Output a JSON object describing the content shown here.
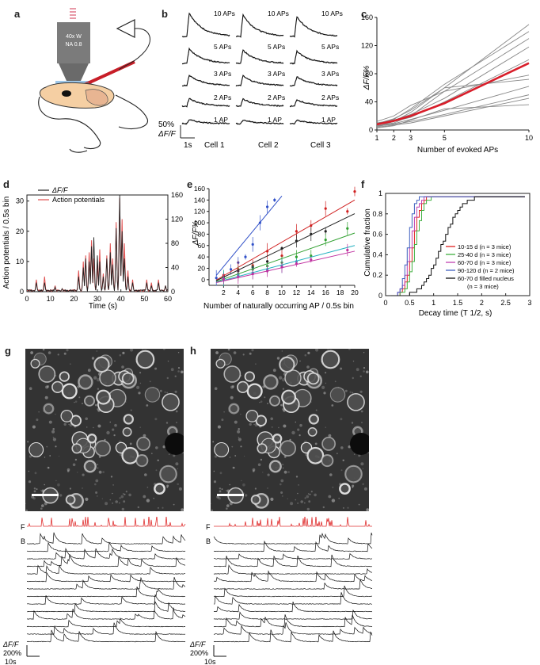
{
  "labels": {
    "a": "a",
    "b": "b",
    "c": "c",
    "d": "d",
    "e": "e",
    "f": "f",
    "g": "g",
    "h": "h"
  },
  "panel_a": {
    "objective_line1": "40x W",
    "objective_line2": "NA 0.8"
  },
  "panel_b": {
    "rows": [
      "10 APs",
      "5 APs",
      "3 APs",
      "2 APs",
      "1 AP"
    ],
    "cells": [
      "Cell 1",
      "Cell 2",
      "Cell 3"
    ],
    "scale_y": "50%",
    "scale_y_unit": "ΔF/F",
    "scale_x": "1s",
    "amplitudes": [
      1.0,
      0.55,
      0.38,
      0.25,
      0.12
    ]
  },
  "chart_data": [
    {
      "id": "c",
      "type": "line",
      "xlabel": "Number of evoked APs",
      "ylabel": "ΔF/F%",
      "xticks": [
        1,
        2,
        3,
        5,
        10
      ],
      "yticks": [
        0,
        40,
        80,
        120,
        160
      ],
      "xlim": [
        1,
        10
      ],
      "ylim": [
        0,
        160
      ],
      "mean": {
        "x": [
          1,
          2,
          3,
          5,
          10
        ],
        "y": [
          8,
          13,
          20,
          38,
          95
        ]
      },
      "cells": [
        {
          "x": [
            1,
            2,
            3,
            5,
            10
          ],
          "y": [
            5,
            12,
            25,
            60,
            150
          ]
        },
        {
          "x": [
            1,
            2,
            3,
            5,
            10
          ],
          "y": [
            8,
            15,
            30,
            65,
            140
          ]
        },
        {
          "x": [
            1,
            2,
            3,
            5,
            10
          ],
          "y": [
            6,
            10,
            20,
            55,
            130
          ]
        },
        {
          "x": [
            1,
            2,
            3,
            5,
            10
          ],
          "y": [
            10,
            14,
            22,
            45,
            118
          ]
        },
        {
          "x": [
            1,
            2,
            3,
            5,
            10
          ],
          "y": [
            7,
            12,
            18,
            40,
            100
          ]
        },
        {
          "x": [
            1,
            2,
            3,
            5,
            10
          ],
          "y": [
            9,
            16,
            28,
            60,
            72
          ]
        },
        {
          "x": [
            1,
            2,
            3,
            5,
            10
          ],
          "y": [
            5,
            9,
            15,
            28,
            62
          ]
        },
        {
          "x": [
            1,
            2,
            3,
            5,
            10
          ],
          "y": [
            6,
            8,
            12,
            22,
            50
          ]
        },
        {
          "x": [
            1,
            2,
            3,
            5,
            10
          ],
          "y": [
            4,
            7,
            10,
            20,
            45
          ]
        },
        {
          "x": [
            1,
            2,
            3,
            5,
            10
          ],
          "y": [
            12,
            20,
            35,
            55,
            78
          ]
        },
        {
          "x": [
            1,
            2,
            3,
            5,
            10
          ],
          "y": [
            3,
            6,
            14,
            30,
            36
          ]
        }
      ]
    },
    {
      "id": "d",
      "type": "line",
      "xlabel": "Time (s)",
      "ylabel_left": "Action potentials / 0.5s bin",
      "xticks": [
        0,
        10,
        20,
        30,
        40,
        50,
        60
      ],
      "yticks_left": [
        0,
        10,
        20,
        30
      ],
      "yticks_right": [
        0,
        40,
        80,
        120,
        160
      ],
      "xlim": [
        0,
        60
      ],
      "ylim_left": [
        0,
        32
      ],
      "ylim_right": [
        0,
        160
      ],
      "legend": [
        "ΔF/F",
        "Action potentials"
      ],
      "legend_position": "top-left",
      "peaks": [
        {
          "t": 4,
          "ap": 4,
          "df": 3
        },
        {
          "t": 7.5,
          "ap": 5,
          "df": 3
        },
        {
          "t": 12,
          "ap": 2,
          "df": 1.5
        },
        {
          "t": 15,
          "ap": 1,
          "df": 1
        },
        {
          "t": 22,
          "ap": 7,
          "df": 5
        },
        {
          "t": 24,
          "ap": 10,
          "df": 8
        },
        {
          "t": 25,
          "ap": 12,
          "df": 11
        },
        {
          "t": 26.5,
          "ap": 13,
          "df": 10
        },
        {
          "t": 27.5,
          "ap": 17,
          "df": 15
        },
        {
          "t": 28.5,
          "ap": 11,
          "df": 18
        },
        {
          "t": 30,
          "ap": 9,
          "df": 12
        },
        {
          "t": 31,
          "ap": 14,
          "df": 10
        },
        {
          "t": 32.5,
          "ap": 6,
          "df": 5
        },
        {
          "t": 34,
          "ap": 12,
          "df": 11
        },
        {
          "t": 35.5,
          "ap": 16,
          "df": 13
        },
        {
          "t": 36.5,
          "ap": 11,
          "df": 9
        },
        {
          "t": 38,
          "ap": 23,
          "df": 21
        },
        {
          "t": 39.5,
          "ap": 31,
          "df": 32
        },
        {
          "t": 40.5,
          "ap": 24,
          "df": 20
        },
        {
          "t": 41.5,
          "ap": 16,
          "df": 11
        },
        {
          "t": 43,
          "ap": 7,
          "df": 5
        },
        {
          "t": 45,
          "ap": 4,
          "df": 3
        },
        {
          "t": 51,
          "ap": 4,
          "df": 3
        },
        {
          "t": 53,
          "ap": 3,
          "df": 2
        },
        {
          "t": 56,
          "ap": 4,
          "df": 3
        },
        {
          "t": 59,
          "ap": 2,
          "df": 2
        }
      ]
    },
    {
      "id": "e",
      "type": "scatter",
      "xlabel": "Number of naturally occurring AP / 0.5s bin",
      "ylabel": "ΔF/F%",
      "xticks": [
        2,
        4,
        6,
        8,
        10,
        12,
        14,
        16,
        18,
        20
      ],
      "yticks": [
        0,
        20,
        40,
        60,
        80,
        100,
        120,
        140,
        160
      ],
      "xlim": [
        0,
        20
      ],
      "ylim": [
        -10,
        160
      ],
      "series": [
        {
          "color": "#3050c8",
          "slope": 15.5,
          "points": [
            [
              1,
              3
            ],
            [
              2,
              5
            ],
            [
              3,
              18
            ],
            [
              4,
              30
            ],
            [
              5,
              40
            ],
            [
              6,
              62
            ],
            [
              7,
              100
            ],
            [
              8,
              128
            ],
            [
              9,
              140
            ]
          ]
        },
        {
          "color": "#d02020",
          "slope": 7.4,
          "points": [
            [
              2,
              8
            ],
            [
              4,
              18
            ],
            [
              6,
              25
            ],
            [
              8,
              50
            ],
            [
              10,
              42
            ],
            [
              12,
              85
            ],
            [
              14,
              95
            ],
            [
              16,
              125
            ],
            [
              19,
              120
            ],
            [
              20,
              155
            ]
          ]
        },
        {
          "color": "#222222",
          "slope": 6.2,
          "points": [
            [
              2,
              4
            ],
            [
              4,
              15
            ],
            [
              6,
              22
            ],
            [
              8,
              32
            ],
            [
              10,
              55
            ],
            [
              12,
              68
            ],
            [
              14,
              80
            ],
            [
              16,
              85
            ]
          ]
        },
        {
          "color": "#30a030",
          "slope": 4.5,
          "points": [
            [
              2,
              3
            ],
            [
              4,
              10
            ],
            [
              6,
              18
            ],
            [
              8,
              24
            ],
            [
              10,
              30
            ],
            [
              12,
              40
            ],
            [
              14,
              42
            ],
            [
              16,
              70
            ],
            [
              19,
              90
            ]
          ]
        },
        {
          "color": "#20b0c0",
          "slope": 3.4,
          "points": [
            [
              2,
              2
            ],
            [
              4,
              8
            ],
            [
              6,
              12
            ],
            [
              8,
              18
            ],
            [
              10,
              24
            ],
            [
              12,
              32
            ]
          ]
        },
        {
          "color": "#c030a0",
          "slope": 2.9,
          "points": [
            [
              2,
              1
            ],
            [
              4,
              5
            ],
            [
              6,
              10
            ],
            [
              8,
              15
            ],
            [
              10,
              22
            ],
            [
              12,
              28
            ],
            [
              14,
              35
            ],
            [
              19,
              52
            ]
          ]
        }
      ]
    },
    {
      "id": "f",
      "type": "line",
      "xlabel": "Decay time (T 1/2, s)",
      "ylabel": "Cumulative fraction",
      "xticks": [
        0,
        0.5,
        1,
        1.5,
        2,
        2.5,
        3
      ],
      "yticks": [
        0,
        0.2,
        0.4,
        0.6,
        0.8,
        1
      ],
      "xlim": [
        0,
        3
      ],
      "ylim": [
        0,
        1
      ],
      "legend_position": "bottom-right",
      "series": [
        {
          "name": "10-15 d (n = 3 mice)",
          "color": "#e02020",
          "median": 0.55,
          "spread": 0.18
        },
        {
          "name": "25-40 d (n = 3 mice)",
          "color": "#40b040",
          "median": 0.6,
          "spread": 0.2
        },
        {
          "name": "60-70 d (n = 3 mice)",
          "color": "#c040b0",
          "median": 0.5,
          "spread": 0.17
        },
        {
          "name": "90-120 d (n = 2 mice)",
          "color": "#4060c0",
          "median": 0.45,
          "spread": 0.15
        },
        {
          "name": "60-70 d filled nucleus",
          "name2": "(n = 3 mice)",
          "color": "#111111",
          "median": 1.15,
          "spread": 0.45
        }
      ]
    }
  ],
  "panel_gh": {
    "marker_F": "F",
    "marker_B": "B",
    "scale_y": "200%",
    "scale_y_unit": "ΔF/F",
    "scale_x": "10s"
  }
}
